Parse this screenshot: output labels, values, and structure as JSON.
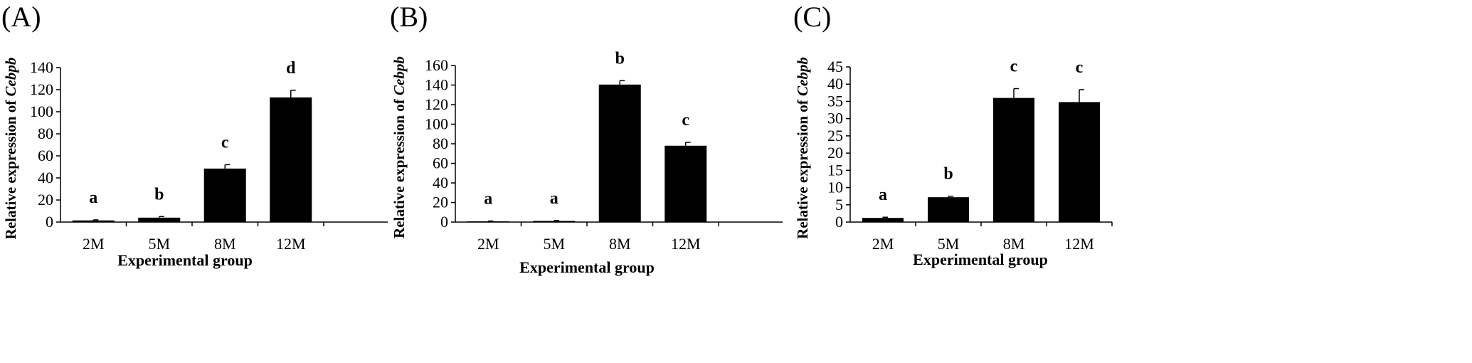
{
  "figure": {
    "panels": [
      "(A)",
      "(B)",
      "(C)"
    ]
  },
  "chart_data": [
    {
      "type": "bar",
      "panel": "(A)",
      "categories": [
        "2M",
        "5M",
        "8M",
        "12M"
      ],
      "values": [
        1.5,
        4,
        48.5,
        113
      ],
      "errors": [
        0.5,
        1,
        3.5,
        6.5
      ],
      "significance": [
        "a",
        "b",
        "c",
        "d"
      ],
      "xlabel": "Experimental group",
      "ylabel_prefix": "Relative expression of ",
      "ylabel_gene": "Cebpb",
      "ylim": [
        0,
        140
      ],
      "yticks": [
        0,
        20,
        40,
        60,
        80,
        100,
        120,
        140
      ],
      "bar_color": "#000000",
      "grid": false
    },
    {
      "type": "bar",
      "panel": "(B)",
      "categories": [
        "2M",
        "5M",
        "8M",
        "12M"
      ],
      "values": [
        0.8,
        1.2,
        140.5,
        78
      ],
      "errors": [
        0.3,
        0.4,
        4,
        3.5
      ],
      "significance": [
        "a",
        "a",
        "b",
        "c"
      ],
      "xlabel": "Experimental group",
      "ylabel_prefix": "Relative expression of ",
      "ylabel_gene": "Cebpb",
      "ylim": [
        0,
        160
      ],
      "yticks": [
        0,
        20,
        40,
        60,
        80,
        100,
        120,
        140,
        160
      ],
      "bar_color": "#000000",
      "grid": false
    },
    {
      "type": "bar",
      "panel": "(C)",
      "categories": [
        "2M",
        "5M",
        "8M",
        "12M"
      ],
      "values": [
        1.2,
        7.2,
        36,
        34.8
      ],
      "errors": [
        0.2,
        0.3,
        2.7,
        3.6
      ],
      "significance": [
        "a",
        "b",
        "c",
        "c"
      ],
      "xlabel": "Experimental group",
      "ylabel_prefix": "Relative expression of ",
      "ylabel_gene": "Cebpb",
      "ylim": [
        0,
        45
      ],
      "yticks": [
        0,
        5,
        10,
        15,
        20,
        25,
        30,
        35,
        40,
        45
      ],
      "bar_color": "#000000",
      "grid": false
    }
  ]
}
